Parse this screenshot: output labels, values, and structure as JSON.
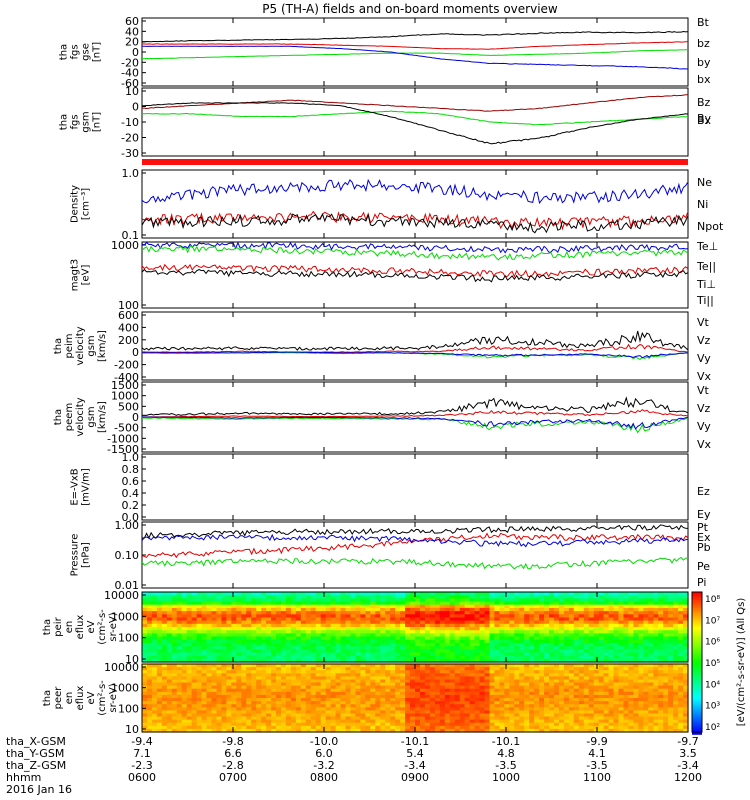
{
  "title": "P5 (TH-A) fields and on-board moments overview",
  "date_label": "2016 Jan 16",
  "colors": {
    "black": "#000000",
    "red": "#e00000",
    "green": "#00dd00",
    "blue": "#0000dd",
    "darkred": "#990000",
    "spec_red": "#ff1010"
  },
  "ephemeris": {
    "labels": [
      "tha_X-GSM",
      "tha_Y-GSM",
      "tha_Z-GSM",
      "hhmm"
    ],
    "columns": [
      [
        "-9.4",
        "7.1",
        "-2.3",
        "0600"
      ],
      [
        "-9.8",
        "6.6",
        "-2.8",
        "0700"
      ],
      [
        "-10.0",
        "6.0",
        "-3.2",
        "0800"
      ],
      [
        "-10.1",
        "5.4",
        "-3.4",
        "0900"
      ],
      [
        "-10.1",
        "4.8",
        "-3.5",
        "1000"
      ],
      [
        "-9.9",
        "4.1",
        "-3.5",
        "1100"
      ],
      [
        "-9.7",
        "3.5",
        "-3.4",
        "1200"
      ]
    ]
  },
  "colorbar": {
    "label": "[eV/(cm²-s-sr-eV)] (All Qs)",
    "ticks": [
      "10⁸",
      "10⁷",
      "10⁶",
      "10⁵",
      "10⁴",
      "10³",
      "10²"
    ]
  },
  "chart_data": [
    {
      "id": "fgs-gse",
      "type": "line",
      "ylabel": [
        "tha",
        "fgs",
        "gse",
        "[nT]"
      ],
      "yticks": [
        "60",
        "40",
        "20",
        "0",
        "-20",
        "-40",
        "-60"
      ],
      "ylim": [
        -60,
        60
      ],
      "legend": [
        "Bt",
        "bz",
        "by",
        "bx"
      ],
      "series": [
        {
          "name": "Bt",
          "color": "black",
          "values": [
            18,
            20,
            21,
            22,
            24,
            27,
            32,
            30,
            33,
            35,
            34,
            36
          ]
        },
        {
          "name": "bz",
          "color": "red",
          "values": [
            14,
            14,
            14,
            14,
            12,
            10,
            6,
            5,
            10,
            13,
            16,
            18
          ]
        },
        {
          "name": "by",
          "color": "green",
          "values": [
            -12,
            -10,
            -8,
            -6,
            -4,
            -2,
            -2,
            -6,
            -4,
            -2,
            2,
            4
          ]
        },
        {
          "name": "bx",
          "color": "blue",
          "values": [
            10,
            10,
            10,
            10,
            6,
            0,
            -12,
            -20,
            -22,
            -24,
            -26,
            -30
          ]
        }
      ]
    },
    {
      "id": "fgs-gsm",
      "type": "line",
      "ylabel": [
        "tha",
        "fgs",
        "gsm",
        "[nT]"
      ],
      "yticks": [
        "10",
        "0",
        "-10",
        "-20",
        "-30"
      ],
      "ylim": [
        -35,
        15
      ],
      "legend": [
        "Bz",
        "By",
        "Bx"
      ],
      "series": [
        {
          "name": "Bz",
          "color": "darkred",
          "values": [
            0,
            2,
            4,
            6,
            4,
            2,
            0,
            -2,
            0,
            4,
            8,
            10
          ]
        },
        {
          "name": "By",
          "color": "green",
          "values": [
            -4,
            -4,
            -6,
            -6,
            -4,
            -2,
            -4,
            -10,
            -12,
            -10,
            -8,
            -6
          ]
        },
        {
          "name": "Bx",
          "color": "black",
          "values": [
            2,
            4,
            4,
            4,
            2,
            -6,
            -16,
            -26,
            -22,
            -14,
            -8,
            -4
          ]
        }
      ]
    },
    {
      "id": "density",
      "type": "line",
      "ylog": true,
      "ylabel": [
        "Density",
        "[cm⁻³]"
      ],
      "yticks": [
        "1.0",
        "0.1"
      ],
      "ylim": [
        0.1,
        1.2
      ],
      "legend": [
        "Ne",
        "Ni",
        "Npot"
      ],
      "series": [
        {
          "name": "Ne",
          "color": "red",
          "values": [
            0.2,
            0.2,
            0.21,
            0.22,
            0.22,
            0.21,
            0.2,
            0.18,
            0.17,
            0.18,
            0.19,
            0.22
          ]
        },
        {
          "name": "Ni",
          "color": "black",
          "values": [
            0.18,
            0.18,
            0.19,
            0.2,
            0.2,
            0.19,
            0.18,
            0.16,
            0.15,
            0.16,
            0.17,
            0.2
          ]
        },
        {
          "name": "Npot",
          "color": "blue",
          "values": [
            0.35,
            0.5,
            0.6,
            0.65,
            0.7,
            0.7,
            0.62,
            0.5,
            0.45,
            0.45,
            0.5,
            0.65
          ]
        }
      ]
    },
    {
      "id": "temperature",
      "type": "line",
      "ylog": true,
      "ylabel": [
        "magt3",
        "[eV]"
      ],
      "yticks": [
        "1000",
        "100"
      ],
      "ylim": [
        100,
        8000
      ],
      "legend": [
        "Te⊥",
        "Te||",
        "Ti⊥",
        "Ti||"
      ],
      "series": [
        {
          "name": "Te⊥",
          "color": "red",
          "values": [
            1500,
            1500,
            1400,
            1400,
            1300,
            1200,
            1100,
            1000,
            1000,
            1100,
            1200,
            1300
          ]
        },
        {
          "name": "Te||",
          "color": "black",
          "values": [
            1100,
            1100,
            1000,
            1000,
            950,
            900,
            800,
            700,
            750,
            800,
            900,
            1000
          ]
        },
        {
          "name": "Ti⊥",
          "color": "blue",
          "values": [
            6500,
            6500,
            6400,
            6300,
            6000,
            5800,
            5500,
            4800,
            5000,
            5300,
            5600,
            6000
          ]
        },
        {
          "name": "Ti||",
          "color": "green",
          "values": [
            5000,
            5000,
            4800,
            4500,
            4200,
            3800,
            3300,
            3000,
            3300,
            3600,
            3900,
            4200
          ]
        }
      ]
    },
    {
      "id": "peim-velocity",
      "type": "line",
      "ylabel": [
        "tha",
        "peim",
        "velocity",
        "gsm",
        "[km/s]"
      ],
      "yticks": [
        "600",
        "400",
        "200",
        "0",
        "-200",
        "-400"
      ],
      "ylim": [
        -400,
        600
      ],
      "legend": [
        "Vt",
        "Vz",
        "Vy",
        "Vx"
      ],
      "series": [
        {
          "name": "Vt",
          "color": "black",
          "values": [
            60,
            60,
            70,
            60,
            60,
            70,
            80,
            200,
            150,
            100,
            250,
            60
          ]
        },
        {
          "name": "Vz",
          "color": "red",
          "values": [
            10,
            10,
            20,
            10,
            10,
            20,
            20,
            80,
            60,
            40,
            100,
            10
          ]
        },
        {
          "name": "Vy",
          "color": "green",
          "values": [
            0,
            -10,
            0,
            0,
            -10,
            0,
            -20,
            -60,
            -40,
            -30,
            -80,
            0
          ]
        },
        {
          "name": "Vx",
          "color": "blue",
          "values": [
            0,
            0,
            0,
            10,
            0,
            0,
            -10,
            -40,
            -30,
            -20,
            -60,
            0
          ]
        }
      ]
    },
    {
      "id": "peem-velocity",
      "type": "line",
      "ylabel": [
        "tha",
        "peem",
        "velocity",
        "gsm",
        "[km/s]"
      ],
      "yticks": [
        "1500",
        "1000",
        "500",
        "0",
        "-500",
        "-1000",
        "-1500"
      ],
      "ylim": [
        -1500,
        1500
      ],
      "legend": [
        "Vt",
        "Vz",
        "Vy",
        "Vx"
      ],
      "series": [
        {
          "name": "Vt",
          "color": "black",
          "values": [
            100,
            120,
            150,
            120,
            130,
            150,
            200,
            600,
            400,
            300,
            700,
            150
          ]
        },
        {
          "name": "Vz",
          "color": "red",
          "values": [
            0,
            20,
            40,
            20,
            20,
            40,
            60,
            200,
            150,
            100,
            250,
            40
          ]
        },
        {
          "name": "Vy",
          "color": "green",
          "values": [
            -40,
            -60,
            -80,
            -60,
            -60,
            -80,
            -100,
            -400,
            -300,
            -200,
            -500,
            -60
          ]
        },
        {
          "name": "Vx",
          "color": "blue",
          "values": [
            0,
            -20,
            -40,
            -20,
            -20,
            -40,
            -60,
            -300,
            -200,
            -150,
            -400,
            -20
          ]
        }
      ]
    },
    {
      "id": "efield",
      "type": "line",
      "ylabel": [
        "E=-VxB",
        "[mV/m]"
      ],
      "yticks": [
        "1.0",
        "0.8",
        "0.6",
        "0.4",
        "0.2",
        "0.0"
      ],
      "ylim": [
        0,
        1
      ],
      "legend": [
        "Ez",
        "Ey",
        "Ex"
      ],
      "series": []
    },
    {
      "id": "pressure",
      "type": "line",
      "ylog": true,
      "ylabel": [
        "Pressure",
        "[nPa]"
      ],
      "yticks": [
        "1.00",
        "0.10",
        "0.01"
      ],
      "ylim": [
        0.01,
        1.2
      ],
      "legend": [
        "Pt",
        "Pb",
        "Pe",
        "Pi"
      ],
      "series": [
        {
          "name": "Pt",
          "color": "black",
          "values": [
            0.45,
            0.5,
            0.55,
            0.6,
            0.6,
            0.62,
            0.62,
            0.7,
            0.72,
            0.75,
            0.8,
            0.85
          ]
        },
        {
          "name": "Pb",
          "color": "red",
          "values": [
            0.1,
            0.12,
            0.14,
            0.16,
            0.2,
            0.25,
            0.35,
            0.45,
            0.4,
            0.4,
            0.4,
            0.4
          ]
        },
        {
          "name": "Pe",
          "color": "green",
          "values": [
            0.06,
            0.06,
            0.07,
            0.07,
            0.07,
            0.07,
            0.06,
            0.05,
            0.05,
            0.06,
            0.07,
            0.08
          ]
        },
        {
          "name": "Pi",
          "color": "blue",
          "values": [
            0.35,
            0.38,
            0.4,
            0.4,
            0.38,
            0.35,
            0.3,
            0.25,
            0.25,
            0.28,
            0.3,
            0.35
          ]
        }
      ]
    },
    {
      "id": "peir-spectrogram",
      "type": "heatmap",
      "ylog": true,
      "ylabel": [
        "tha",
        "peir",
        "en",
        "eflux",
        "eV",
        "(cm²-s-",
        "sr-eV)"
      ],
      "yticks": [
        "10000",
        "1000",
        "100",
        "10"
      ],
      "ylim": [
        5,
        20000
      ]
    },
    {
      "id": "peer-spectrogram",
      "type": "heatmap",
      "ylog": true,
      "ylabel": [
        "tha",
        "peer",
        "en",
        "eflux",
        "eV",
        "(cm²-s-",
        "sr-eV)"
      ],
      "yticks": [
        "10000",
        "1000",
        "100",
        "10"
      ],
      "ylim": [
        5,
        20000
      ]
    }
  ]
}
